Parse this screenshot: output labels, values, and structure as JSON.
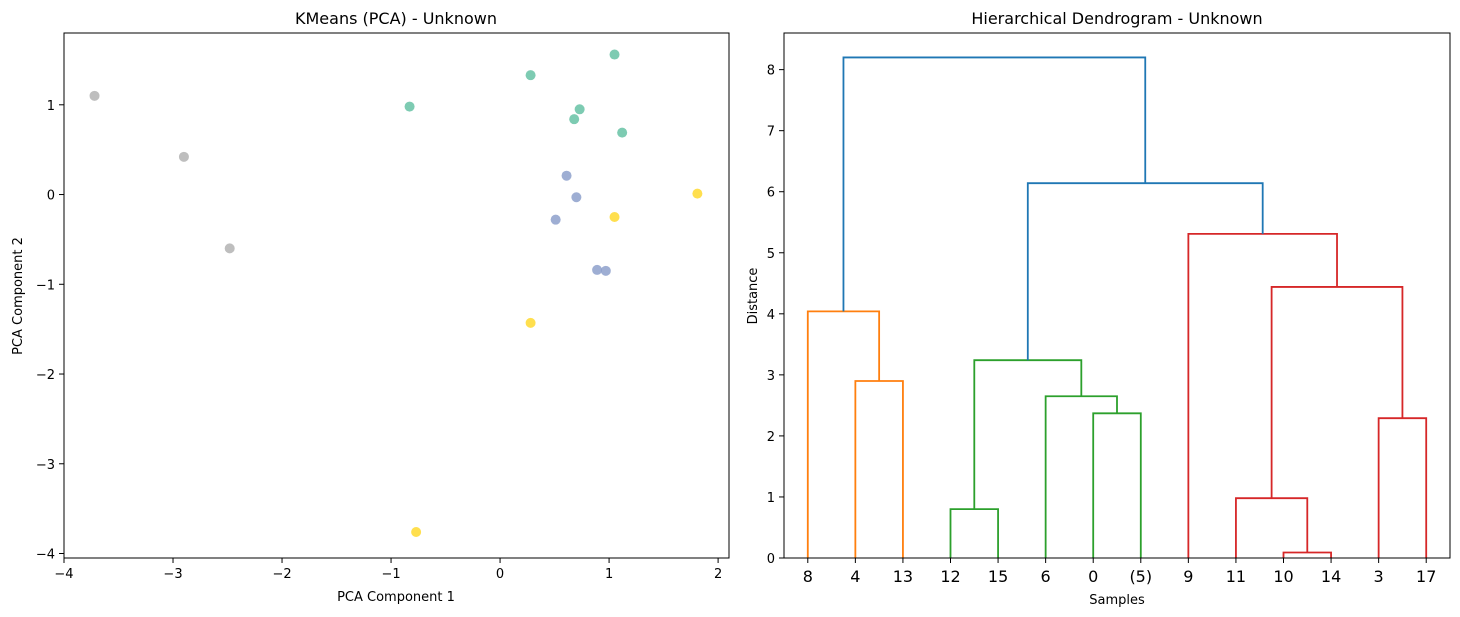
{
  "chart_data": [
    {
      "type": "scatter",
      "title": "KMeans (PCA) - Unknown",
      "xlabel": "PCA Component 1",
      "ylabel": "PCA Component 2",
      "xlim": [
        -4.0,
        2.1
      ],
      "ylim": [
        -4.05,
        1.8
      ],
      "xticks": [
        {
          "value": -4,
          "label": "−4"
        },
        {
          "value": -3,
          "label": "−3"
        },
        {
          "value": -2,
          "label": "−2"
        },
        {
          "value": -1,
          "label": "−1"
        },
        {
          "value": 0,
          "label": "0"
        },
        {
          "value": 1,
          "label": "1"
        },
        {
          "value": 2,
          "label": "2"
        }
      ],
      "yticks": [
        {
          "value": -4,
          "label": "−4"
        },
        {
          "value": -3,
          "label": "−3"
        },
        {
          "value": -2,
          "label": "−2"
        },
        {
          "value": -1,
          "label": "−1"
        },
        {
          "value": 0,
          "label": "0"
        },
        {
          "value": 1,
          "label": "1"
        }
      ],
      "grid": false,
      "series": [
        {
          "color": "#66c2a5",
          "points": [
            [
              1.05,
              1.56
            ],
            [
              0.28,
              1.33
            ],
            [
              -0.83,
              0.98
            ],
            [
              0.73,
              0.95
            ],
            [
              0.68,
              0.84
            ],
            [
              1.12,
              0.69
            ]
          ]
        },
        {
          "color": "#8da0cb",
          "points": [
            [
              0.61,
              0.21
            ],
            [
              0.7,
              -0.03
            ],
            [
              0.51,
              -0.28
            ],
            [
              0.89,
              -0.84
            ],
            [
              0.97,
              -0.85
            ]
          ]
        },
        {
          "color": "#ffd92f",
          "points": [
            [
              1.81,
              0.01
            ],
            [
              1.05,
              -0.25
            ],
            [
              0.28,
              -1.43
            ],
            [
              -0.77,
              -3.76
            ]
          ]
        },
        {
          "color": "#b3b3b3",
          "points": [
            [
              -3.72,
              1.1
            ],
            [
              -2.9,
              0.42
            ],
            [
              -2.48,
              -0.6
            ]
          ]
        }
      ]
    },
    {
      "type": "dendrogram",
      "title": "Hierarchical Dendrogram - Unknown",
      "xlabel": "Samples",
      "ylabel": "Distance",
      "ylim": [
        0,
        8.6
      ],
      "yticks": [
        0,
        1,
        2,
        3,
        4,
        5,
        6,
        7,
        8
      ],
      "grid": false,
      "leaves": [
        "8",
        "4",
        "13",
        "12",
        "15",
        "6",
        "0",
        "(5)",
        "9",
        "11",
        "10",
        "14",
        "3",
        "17"
      ],
      "links": [
        {
          "x": [
            1,
            2
          ],
          "h": 2.9,
          "hl": 0,
          "hr": 0,
          "color": "#ff7f0e"
        },
        {
          "x": [
            0,
            1.5
          ],
          "h": 4.04,
          "hl": 0,
          "hr": 2.9,
          "color": "#ff7f0e"
        },
        {
          "x": [
            3,
            4
          ],
          "h": 0.8,
          "hl": 0,
          "hr": 0,
          "color": "#2ca02c"
        },
        {
          "x": [
            6,
            7
          ],
          "h": 2.37,
          "hl": 0,
          "hr": 0,
          "color": "#2ca02c"
        },
        {
          "x": [
            5,
            6.5
          ],
          "h": 2.65,
          "hl": 0,
          "hr": 2.37,
          "color": "#2ca02c"
        },
        {
          "x": [
            3.5,
            5.75
          ],
          "h": 3.24,
          "hl": 0.8,
          "hr": 2.65,
          "color": "#2ca02c"
        },
        {
          "x": [
            10,
            11
          ],
          "h": 0.09,
          "hl": 0,
          "hr": 0,
          "color": "#d62728"
        },
        {
          "x": [
            9,
            10.5
          ],
          "h": 0.98,
          "hl": 0,
          "hr": 0.09,
          "color": "#d62728"
        },
        {
          "x": [
            12,
            13
          ],
          "h": 2.29,
          "hl": 0,
          "hr": 0,
          "color": "#d62728"
        },
        {
          "x": [
            9.75,
            12.5
          ],
          "h": 4.44,
          "hl": 0.98,
          "hr": 2.29,
          "color": "#d62728"
        },
        {
          "x": [
            8,
            11.125
          ],
          "h": 5.31,
          "hl": 0,
          "hr": 4.44,
          "color": "#d62728"
        },
        {
          "x": [
            4.625,
            9.5625
          ],
          "h": 6.14,
          "hl": 3.24,
          "hr": 5.31,
          "color": "#1f77b4"
        },
        {
          "x": [
            0.75,
            7.09375
          ],
          "h": 8.2,
          "hl": 4.04,
          "hr": 6.14,
          "color": "#1f77b4"
        }
      ]
    }
  ]
}
